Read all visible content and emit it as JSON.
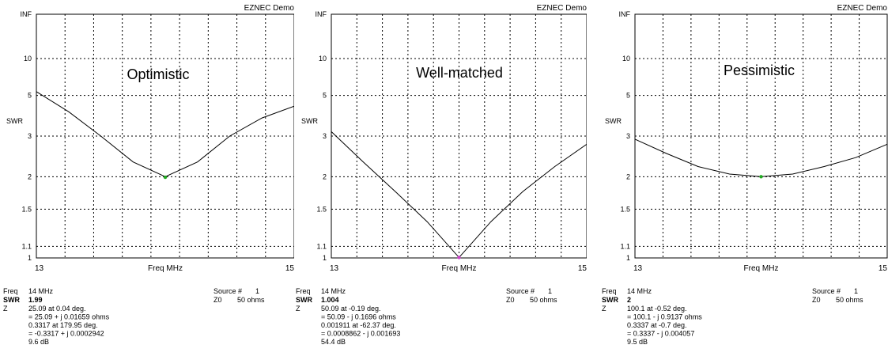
{
  "chart_data": [
    {
      "type": "line",
      "app_label": "EZNEC Demo",
      "title": "Optimistic",
      "xlabel": "Freq MHz",
      "ylabel": "SWR",
      "xlim": [
        13,
        15
      ],
      "x_tick_labels": [
        "13",
        "15"
      ],
      "y_tick_labels": [
        "INF",
        "10",
        "5",
        "3",
        "2",
        "1.5",
        "1.1",
        "1"
      ],
      "y_scale": "reflection-coefficient",
      "grid": true,
      "series": [
        {
          "x": [
            13,
            13.25,
            13.5,
            13.75,
            14,
            14.25,
            14.5,
            14.75,
            15
          ],
          "values": [
            5.3,
            4.0,
            3.0,
            2.3,
            2.0,
            2.3,
            3.0,
            3.7,
            4.3
          ]
        }
      ],
      "marker": {
        "x": 14,
        "y": 1.99,
        "color": "#22aa22"
      },
      "info": {
        "freq_label": "Freq",
        "freq_value": "14 MHz",
        "swr_label": "SWR",
        "swr_value": "1.99",
        "z_label": "Z",
        "z_lines": [
          "25.09 at 0.04 deg.",
          "= 25.09 + j 0.01659 ohms",
          "0.3317 at 179.95 deg.",
          "= -0.3317 + j 0.0002942",
          "9.6 dB"
        ],
        "source_label": "Source #",
        "source_value": "1",
        "z0_label": "Z0",
        "z0_value": "50 ohms"
      }
    },
    {
      "type": "line",
      "app_label": "EZNEC Demo",
      "title": "Well-matched",
      "xlabel": "Freq MHz",
      "ylabel": "SWR",
      "xlim": [
        13,
        15
      ],
      "x_tick_labels": [
        "13",
        "15"
      ],
      "y_tick_labels": [
        "INF",
        "10",
        "5",
        "3",
        "2",
        "1.5",
        "1.1",
        "1"
      ],
      "y_scale": "reflection-coefficient",
      "grid": true,
      "series": [
        {
          "x": [
            13,
            13.25,
            13.5,
            13.75,
            14,
            14.25,
            14.5,
            14.75,
            15
          ],
          "values": [
            3.15,
            2.3,
            1.75,
            1.35,
            1.004,
            1.35,
            1.75,
            2.2,
            2.75
          ]
        }
      ],
      "marker": {
        "x": 14,
        "y": 1.004,
        "color": "#cc44cc"
      },
      "info": {
        "freq_label": "Freq",
        "freq_value": "14 MHz",
        "swr_label": "SWR",
        "swr_value": "1.004",
        "z_label": "Z",
        "z_lines": [
          "50.09 at -0.19 deg.",
          "= 50.09 - j 0.1696 ohms",
          "0.001911 at -62.37 deg.",
          "= 0.0008862 - j 0.001693",
          "54.4 dB"
        ],
        "source_label": "Source #",
        "source_value": "1",
        "z0_label": "Z0",
        "z0_value": "50 ohms"
      }
    },
    {
      "type": "line",
      "app_label": "EZNEC Demo",
      "title": "Pessimistic",
      "xlabel": "Freq MHz",
      "ylabel": "SWR",
      "xlim": [
        13,
        15
      ],
      "x_tick_labels": [
        "13",
        "15"
      ],
      "y_tick_labels": [
        "INF",
        "10",
        "5",
        "3",
        "2",
        "1.5",
        "1.1",
        "1"
      ],
      "y_scale": "reflection-coefficient",
      "grid": true,
      "series": [
        {
          "x": [
            13,
            13.25,
            13.5,
            13.75,
            14,
            14.25,
            14.5,
            14.75,
            15
          ],
          "values": [
            2.9,
            2.5,
            2.2,
            2.05,
            2.0,
            2.05,
            2.2,
            2.4,
            2.75
          ]
        }
      ],
      "marker": {
        "x": 14,
        "y": 2,
        "color": "#22aa22"
      },
      "info": {
        "freq_label": "Freq",
        "freq_value": "14 MHz",
        "swr_label": "SWR",
        "swr_value": "2",
        "z_label": "Z",
        "z_lines": [
          "100.1 at -0.52 deg.",
          "= 100.1 - j 0.9137 ohms",
          "0.3337 at -0.7 deg.",
          "= 0.3337 - j 0.004057",
          "9.5 dB"
        ],
        "source_label": "Source #",
        "source_value": "1",
        "z0_label": "Z0",
        "z0_value": "50 ohms"
      }
    }
  ]
}
